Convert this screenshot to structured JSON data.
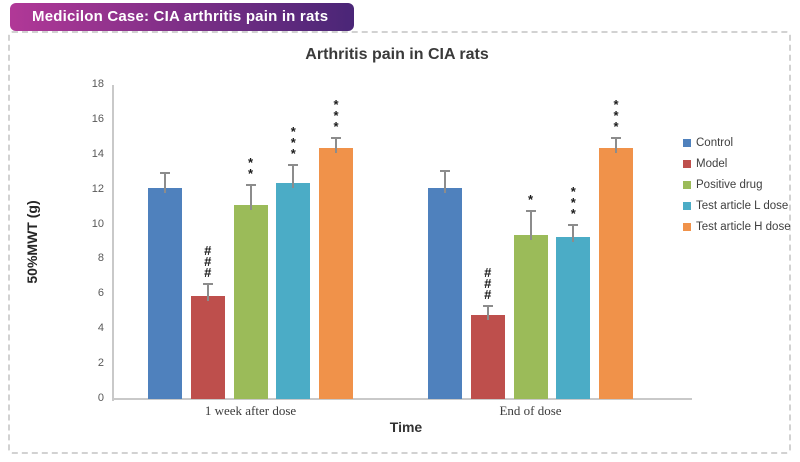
{
  "header": {
    "badge_label": "Medicilon Case: CIA arthritis pain in rats",
    "badge_gradient_start": "#B13897",
    "badge_gradient_end": "#4A2677"
  },
  "chart_data": {
    "type": "bar",
    "title": "Arthritis pain in CIA rats",
    "xlabel": "Time",
    "ylabel": "50%MWT (g)",
    "ylim": [
      0,
      18
    ],
    "yticks": [
      0,
      2,
      4,
      6,
      8,
      10,
      12,
      14,
      16,
      18
    ],
    "grid": false,
    "error_bars": true,
    "legend_position": "right",
    "categories": [
      "1 week after dose",
      "End of dose"
    ],
    "series": [
      {
        "name": "Control",
        "color": "#4F81BD",
        "values": [
          12.1,
          12.1
        ],
        "errors": [
          0.9,
          1.0
        ],
        "annotations": [
          "",
          ""
        ]
      },
      {
        "name": "Model",
        "color": "#BE4F4C",
        "values": [
          5.9,
          4.8
        ],
        "errors": [
          0.75,
          0.6
        ],
        "annotations": [
          "###",
          "###"
        ]
      },
      {
        "name": "Positive drug",
        "color": "#9BBB59",
        "values": [
          11.1,
          9.4
        ],
        "errors": [
          1.25,
          1.45
        ],
        "annotations": [
          "**",
          "*"
        ]
      },
      {
        "name": "Test article L dose",
        "color": "#4BACC6",
        "values": [
          12.4,
          9.3
        ],
        "errors": [
          1.1,
          0.75
        ],
        "annotations": [
          "***",
          "***"
        ]
      },
      {
        "name": "Test article H dose",
        "color": "#F0924A",
        "values": [
          14.4,
          14.4
        ],
        "errors": [
          0.6,
          0.6
        ],
        "annotations": [
          "***",
          "***"
        ]
      }
    ]
  }
}
